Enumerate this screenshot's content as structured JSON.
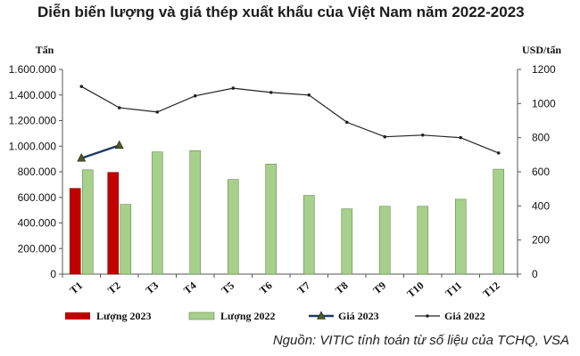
{
  "title": "Diễn biến lượng và giá thép xuất khẩu của Việt Nam năm 2022-2023",
  "source": "Nguồn: VITIC tính toán từ số liệu của TCHQ, VSA",
  "chart_data": {
    "type": "bar",
    "categories": [
      "T1",
      "T2",
      "T3",
      "T4",
      "T5",
      "T6",
      "T7",
      "T8",
      "T9",
      "T10",
      "T11",
      "T12"
    ],
    "ylabel_left": "Tấn",
    "ylabel_right": "USD/tấn",
    "ylim_left": [
      0,
      1600000
    ],
    "ylim_right": [
      0,
      1200
    ],
    "yticks_left": [
      "0",
      "200.000",
      "400.000",
      "600.000",
      "800.000",
      "1.000.000",
      "1.200.000",
      "1.400.000",
      "1.600.000"
    ],
    "yticks_right": [
      "0",
      "200",
      "400",
      "600",
      "800",
      "1000",
      "1200"
    ],
    "grid": false,
    "legend_position": "bottom",
    "series": [
      {
        "name": "Lượng 2023",
        "kind": "bar",
        "axis": "left",
        "color": "#c00000",
        "values": [
          670000,
          795000,
          null,
          null,
          null,
          null,
          null,
          null,
          null,
          null,
          null,
          null
        ]
      },
      {
        "name": "Lượng 2022",
        "kind": "bar",
        "axis": "left",
        "color": "#a8d08d",
        "values": [
          815000,
          545000,
          955000,
          965000,
          740000,
          860000,
          615000,
          510000,
          530000,
          530000,
          585000,
          820000
        ]
      },
      {
        "name": "Giá 2023",
        "kind": "line",
        "axis": "right",
        "color": "#1f3864",
        "values": [
          680,
          755,
          null,
          null,
          null,
          null,
          null,
          null,
          null,
          null,
          null,
          null
        ]
      },
      {
        "name": "Giá 2022",
        "kind": "line",
        "axis": "right",
        "color": "#222222",
        "values": [
          1100,
          975,
          950,
          1045,
          1090,
          1065,
          1050,
          890,
          805,
          815,
          800,
          710
        ]
      }
    ]
  }
}
